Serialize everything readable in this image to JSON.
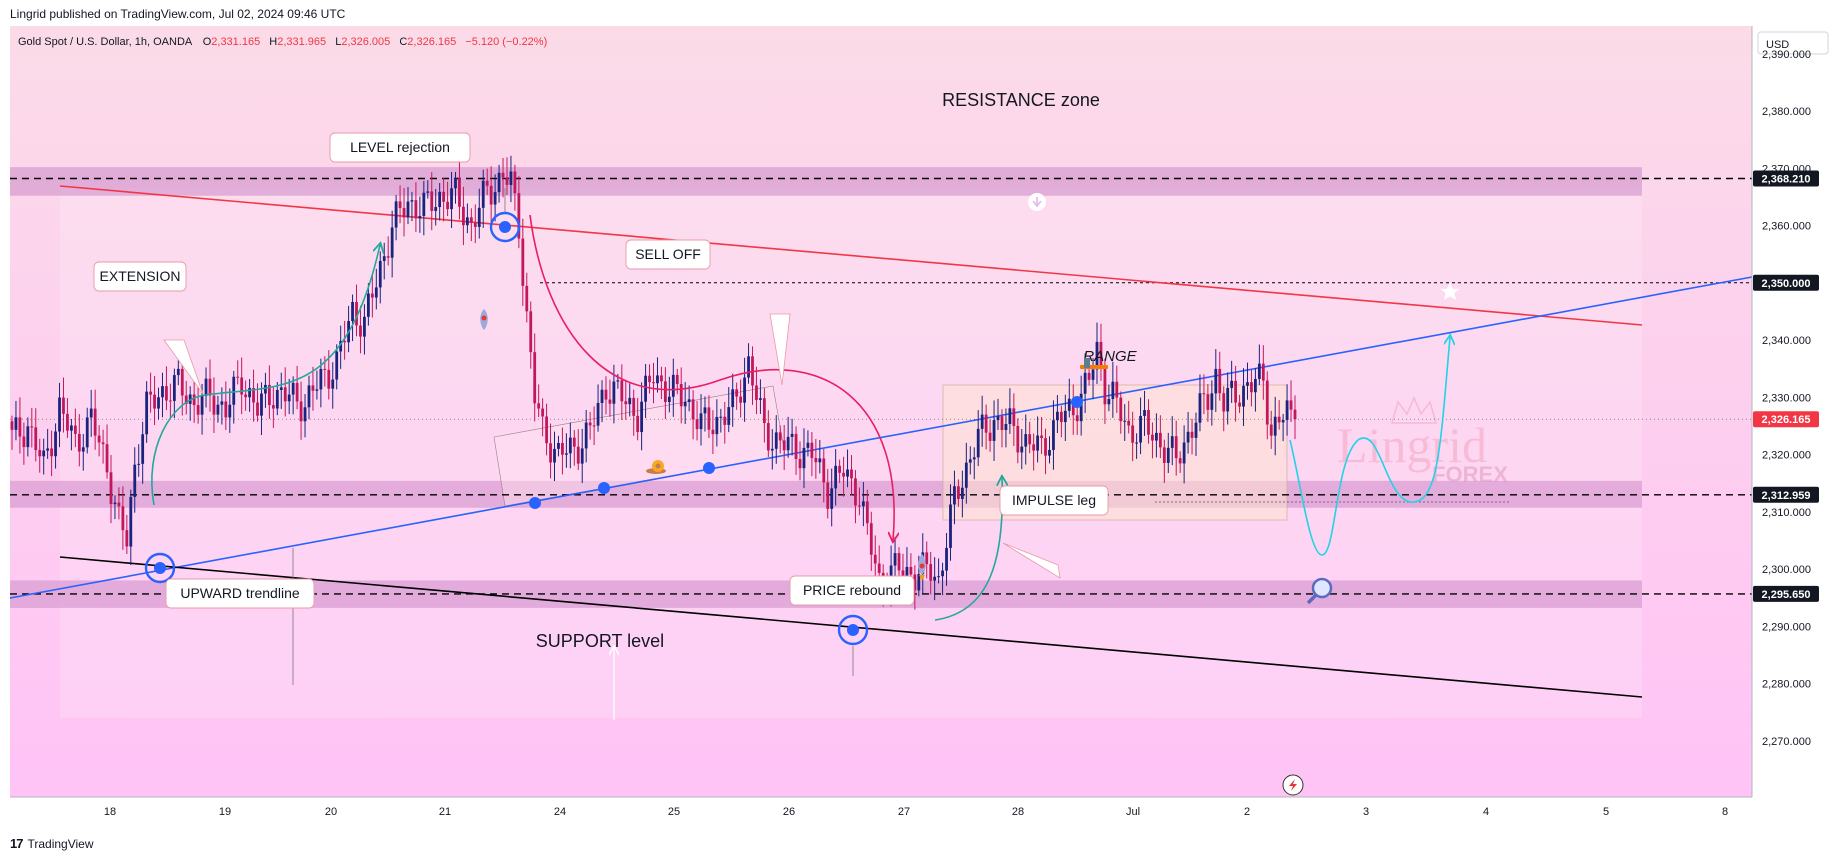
{
  "header": {
    "published": "Lingrid published on TradingView.com, Jul 02, 2024 09:46 UTC"
  },
  "footer": {
    "brand": "TradingView",
    "logo_icon": "tv-logo-icon"
  },
  "watermark": {
    "top": "Lingrid",
    "bottom": "FOREX"
  },
  "colors": {
    "background_top": "#fbdbe8",
    "background_bottom": "#ffc3f6",
    "zone": "#d99ed3",
    "resistance_line": "#f23645",
    "trendline": "#2962ff",
    "support_line": "#000000",
    "up_candle": "#1a237e",
    "down_candle": "#c2185b",
    "projection": "#22d3e6",
    "arrow_up": "#26a69a",
    "sell_arrow": "#e91e63",
    "range_box": "#ffe0d0"
  },
  "chart_data": {
    "type": "candlestick",
    "title": "Gold Spot / U.S. Dollar, 1h, OANDA",
    "ohlc": {
      "O": {
        "label": "O",
        "value": "2,331.165"
      },
      "H": {
        "label": "H",
        "value": "2,331.965"
      },
      "L": {
        "label": "L",
        "value": "2,326.005"
      },
      "C": {
        "label": "C",
        "value": "2,326.165"
      },
      "change": "−5.120 (−0.22%)"
    },
    "currency": "USD",
    "y_range": [
      2262,
      2397
    ],
    "y_ticks": [
      "2,270.000",
      "2,280.000",
      "2,290.000",
      "2,300.000",
      "2,310.000",
      "2,320.000",
      "2,330.000",
      "2,340.000",
      "2,350.000",
      "2,360.000",
      "2,370.000",
      "2,380.000",
      "2,390.000"
    ],
    "y_tick_values": [
      2270,
      2280,
      2290,
      2300,
      2310,
      2320,
      2330,
      2340,
      2350,
      2360,
      2370,
      2380,
      2390
    ],
    "x_ticks": [
      "18",
      "19",
      "20",
      "21",
      "24",
      "25",
      "26",
      "27",
      "28",
      "Jul",
      "2",
      "3",
      "4",
      "5",
      "8"
    ],
    "price_tags": [
      {
        "label": "2,368.210",
        "value": 2368.21,
        "style": "dark"
      },
      {
        "label": "2,350.000",
        "value": 2350.0,
        "style": "dark"
      },
      {
        "label": "2,326.165",
        "value": 2326.165,
        "style": "last"
      },
      {
        "label": "2,312.959",
        "value": 2312.959,
        "style": "dark"
      },
      {
        "label": "2,295.650",
        "value": 2295.65,
        "style": "dark"
      }
    ],
    "zones": [
      {
        "from": 2365.2,
        "to": 2370.2
      },
      {
        "from": 2310.7,
        "to": 2315.4
      },
      {
        "from": 2293.2,
        "to": 2298.0
      }
    ],
    "dashed_levels": [
      2368.21,
      2312.959,
      2295.65
    ],
    "dotted_levels": [
      2350.0
    ],
    "last_price": 2326.165,
    "candle_anchors": [
      [
        0,
        2323
      ],
      [
        4,
        2325
      ],
      [
        8,
        2318
      ],
      [
        12,
        2328
      ],
      [
        16,
        2322
      ],
      [
        20,
        2326
      ],
      [
        24,
        2318
      ],
      [
        27,
        2308
      ],
      [
        29,
        2305
      ],
      [
        31,
        2318
      ],
      [
        34,
        2328
      ],
      [
        38,
        2331
      ],
      [
        42,
        2332
      ],
      [
        46,
        2329
      ],
      [
        50,
        2330
      ],
      [
        54,
        2328
      ],
      [
        58,
        2333
      ],
      [
        62,
        2328
      ],
      [
        66,
        2331
      ],
      [
        70,
        2330
      ],
      [
        74,
        2329
      ],
      [
        78,
        2333
      ],
      [
        82,
        2336
      ],
      [
        86,
        2345
      ],
      [
        89,
        2343
      ],
      [
        92,
        2350
      ],
      [
        96,
        2360
      ],
      [
        100,
        2364
      ],
      [
        104,
        2363
      ],
      [
        108,
        2365
      ],
      [
        112,
        2365
      ],
      [
        116,
        2360
      ],
      [
        120,
        2366
      ],
      [
        122,
        2367
      ],
      [
        124,
        2369
      ],
      [
        126,
        2367
      ],
      [
        128,
        2360
      ],
      [
        130,
        2344
      ],
      [
        132,
        2330
      ],
      [
        134,
        2324
      ],
      [
        138,
        2320
      ],
      [
        142,
        2321
      ],
      [
        146,
        2324
      ],
      [
        150,
        2332
      ],
      [
        154,
        2330
      ],
      [
        158,
        2327
      ],
      [
        162,
        2334
      ],
      [
        166,
        2331
      ],
      [
        170,
        2330
      ],
      [
        174,
        2325
      ],
      [
        178,
        2326
      ],
      [
        182,
        2328
      ],
      [
        186,
        2336
      ],
      [
        188,
        2330
      ],
      [
        190,
        2324
      ],
      [
        194,
        2322
      ],
      [
        198,
        2321
      ],
      [
        202,
        2320
      ],
      [
        206,
        2314
      ],
      [
        210,
        2317
      ],
      [
        214,
        2313
      ],
      [
        216,
        2306
      ],
      [
        218,
        2301
      ],
      [
        219,
        2298
      ],
      [
        221,
        2299
      ],
      [
        224,
        2300
      ],
      [
        228,
        2299
      ],
      [
        232,
        2300
      ],
      [
        234,
        2298
      ],
      [
        236,
        2305
      ],
      [
        238,
        2312
      ],
      [
        240,
        2316
      ],
      [
        244,
        2323
      ],
      [
        248,
        2326
      ],
      [
        252,
        2325
      ],
      [
        256,
        2322
      ],
      [
        260,
        2321
      ],
      [
        264,
        2326
      ],
      [
        268,
        2328
      ],
      [
        272,
        2333
      ],
      [
        274,
        2338
      ],
      [
        276,
        2332
      ],
      [
        278,
        2330
      ],
      [
        282,
        2324
      ],
      [
        286,
        2325
      ],
      [
        290,
        2322
      ],
      [
        294,
        2319
      ],
      [
        298,
        2325
      ],
      [
        302,
        2330
      ],
      [
        304,
        2334
      ],
      [
        306,
        2329
      ],
      [
        308,
        2330
      ],
      [
        312,
        2332
      ],
      [
        316,
        2333
      ],
      [
        318,
        2324
      ],
      [
        320,
        2326
      ],
      [
        322,
        2327
      ],
      [
        324,
        2326.165
      ]
    ],
    "annotations": [
      {
        "text": "LEVEL rejection",
        "x": 400,
        "y": 147,
        "type": "callout"
      },
      {
        "text": "EXTENSION",
        "x": 140,
        "y": 276,
        "type": "callout"
      },
      {
        "text": "SELL OFF",
        "x": 668,
        "y": 254,
        "type": "callout"
      },
      {
        "text": "RANGE",
        "x": 1110,
        "y": 356,
        "type": "italic"
      },
      {
        "text": "IMPULSE leg",
        "x": 1054,
        "y": 500,
        "type": "callout"
      },
      {
        "text": "UPWARD trendline",
        "x": 240,
        "y": 593,
        "type": "callout"
      },
      {
        "text": "PRICE rebound",
        "x": 852,
        "y": 590,
        "type": "callout"
      },
      {
        "text": "RESISTANCE zone",
        "x": 1021,
        "y": 100,
        "type": "plain"
      },
      {
        "text": "SUPPORT level",
        "x": 600,
        "y": 641,
        "type": "plain"
      }
    ],
    "icons": [
      "star-icon",
      "hammer-icon",
      "rocket-icon",
      "snail-icon",
      "magnifier-icon",
      "down-arrow-icon",
      "lightning-icon"
    ]
  }
}
